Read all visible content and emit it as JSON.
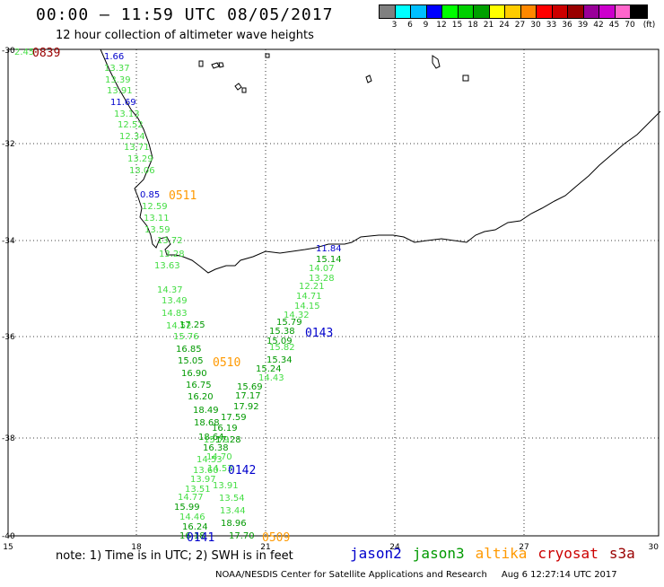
{
  "title": "00:00 – 11:59 UTC 08/05/2017",
  "subtitle": "12 hour collection of altimeter wave heights",
  "legend": {
    "colors": [
      "#808080",
      "#00ffff",
      "#00bfff",
      "#0000ff",
      "#00ff00",
      "#00d000",
      "#00a000",
      "#ffff00",
      "#ffcc00",
      "#ff8800",
      "#ff0000",
      "#cc0000",
      "#990000",
      "#990099",
      "#cc00cc",
      "#ff66cc",
      "#000000"
    ],
    "labels": [
      "3",
      "6",
      "9",
      "12",
      "15",
      "18",
      "21",
      "24",
      "27",
      "30",
      "33",
      "36",
      "39",
      "42",
      "45",
      "70",
      "(ft)"
    ]
  },
  "axes": {
    "lon_labels": [
      "15",
      "18",
      "21",
      "24",
      "27",
      "30"
    ],
    "lat_labels": [
      "-30",
      "-32",
      "-34",
      "-36",
      "-38",
      "-40"
    ]
  },
  "note": "note:  1) Time is in UTC;  2) SWH is in feet",
  "satellites": [
    {
      "name": "jason2",
      "color": "#0000cc"
    },
    {
      "name": "jason3",
      "color": "#009900"
    },
    {
      "name": "altika",
      "color": "#ff9900"
    },
    {
      "name": "cryosat",
      "color": "#cc0000"
    },
    {
      "name": "s3a",
      "color": "#990000"
    }
  ],
  "credit": {
    "org": "NOAA/NESDIS Center for Satellite Applications and Research",
    "timestamp": "Aug  6 12:27:14 UTC 2017"
  },
  "pass_times": [
    {
      "text": "0839",
      "color": "#990000"
    },
    {
      "text": "0511",
      "color": "#ff9900"
    },
    {
      "text": "0143",
      "color": "#0000cc"
    },
    {
      "text": "0510",
      "color": "#ff9900"
    },
    {
      "text": "0142",
      "color": "#0000cc"
    },
    {
      "text": "0141",
      "color": "#0000cc"
    },
    {
      "text": "0509",
      "color": "#ff9900"
    }
  ],
  "track_values": [
    {
      "text": "2.45",
      "color": "#44dd44"
    },
    {
      "text": "1.66",
      "color": "#0000cc"
    },
    {
      "text": "13.37",
      "color": "#44dd44"
    },
    {
      "text": "13.39",
      "color": "#44dd44"
    },
    {
      "text": "13.91",
      "color": "#44dd44"
    },
    {
      "text": "11.69",
      "color": "#0000cc"
    },
    {
      "text": "13.13",
      "color": "#44dd44"
    },
    {
      "text": "12.52",
      "color": "#44dd44"
    },
    {
      "text": "12.34",
      "color": "#44dd44"
    },
    {
      "text": "13.71",
      "color": "#44dd44"
    },
    {
      "text": "13.29",
      "color": "#44dd44"
    },
    {
      "text": "13.06",
      "color": "#44dd44"
    },
    {
      "text": "0.85",
      "color": "#0000cc"
    },
    {
      "text": "12.59",
      "color": "#44dd44"
    },
    {
      "text": "13.11",
      "color": "#44dd44"
    },
    {
      "text": "13.59",
      "color": "#44dd44"
    },
    {
      "text": "13.72",
      "color": "#44dd44"
    },
    {
      "text": "13.28",
      "color": "#44dd44"
    },
    {
      "text": "13.63",
      "color": "#44dd44"
    },
    {
      "text": "14.37",
      "color": "#44dd44"
    },
    {
      "text": "13.49",
      "color": "#44dd44"
    },
    {
      "text": "14.83",
      "color": "#44dd44"
    },
    {
      "text": "14.52",
      "color": "#44dd44"
    },
    {
      "text": "17.25",
      "color": "#009900"
    },
    {
      "text": "15.76",
      "color": "#44dd44"
    },
    {
      "text": "16.85",
      "color": "#009900"
    },
    {
      "text": "15.05",
      "color": "#009900"
    },
    {
      "text": "16.90",
      "color": "#009900"
    },
    {
      "text": "16.75",
      "color": "#009900"
    },
    {
      "text": "16.20",
      "color": "#009900"
    },
    {
      "text": "18.49",
      "color": "#009900"
    },
    {
      "text": "18.68",
      "color": "#009900"
    },
    {
      "text": "18.64",
      "color": "#009900"
    },
    {
      "text": "15.79",
      "color": "#44dd44"
    },
    {
      "text": "14.53",
      "color": "#44dd44"
    },
    {
      "text": "13.60",
      "color": "#44dd44"
    },
    {
      "text": "13.97",
      "color": "#44dd44"
    },
    {
      "text": "13.51",
      "color": "#44dd44"
    },
    {
      "text": "14.77",
      "color": "#44dd44"
    },
    {
      "text": "15.99",
      "color": "#009900"
    },
    {
      "text": "14.46",
      "color": "#44dd44"
    },
    {
      "text": "16.24",
      "color": "#009900"
    },
    {
      "text": "16.18",
      "color": "#009900"
    },
    {
      "text": "11.84",
      "color": "#0000cc"
    },
    {
      "text": "15.14",
      "color": "#009900"
    },
    {
      "text": "14.07",
      "color": "#44dd44"
    },
    {
      "text": "13.28",
      "color": "#44dd44"
    },
    {
      "text": "12.21",
      "color": "#44dd44"
    },
    {
      "text": "14.71",
      "color": "#44dd44"
    },
    {
      "text": "14.15",
      "color": "#44dd44"
    },
    {
      "text": "14.32",
      "color": "#44dd44"
    },
    {
      "text": "15.79",
      "color": "#009900"
    },
    {
      "text": "15.38",
      "color": "#009900"
    },
    {
      "text": "15.09",
      "color": "#009900"
    },
    {
      "text": "15.82",
      "color": "#44dd44"
    },
    {
      "text": "15.34",
      "color": "#009900"
    },
    {
      "text": "15.24",
      "color": "#009900"
    },
    {
      "text": "14.43",
      "color": "#44dd44"
    },
    {
      "text": "15.69",
      "color": "#009900"
    },
    {
      "text": "17.17",
      "color": "#009900"
    },
    {
      "text": "17.92",
      "color": "#009900"
    },
    {
      "text": "17.59",
      "color": "#009900"
    },
    {
      "text": "16.19",
      "color": "#009900"
    },
    {
      "text": "17.28",
      "color": "#009900"
    },
    {
      "text": "16.38",
      "color": "#009900"
    },
    {
      "text": "14.70",
      "color": "#44dd44"
    },
    {
      "text": "14.53",
      "color": "#44dd44"
    },
    {
      "text": "13.91",
      "color": "#44dd44"
    },
    {
      "text": "13.54",
      "color": "#44dd44"
    },
    {
      "text": "13.44",
      "color": "#44dd44"
    },
    {
      "text": "18.96",
      "color": "#009900"
    },
    {
      "text": "17.70",
      "color": "#009900"
    },
    {
      "text": "17.45",
      "color": "#009900"
    }
  ]
}
